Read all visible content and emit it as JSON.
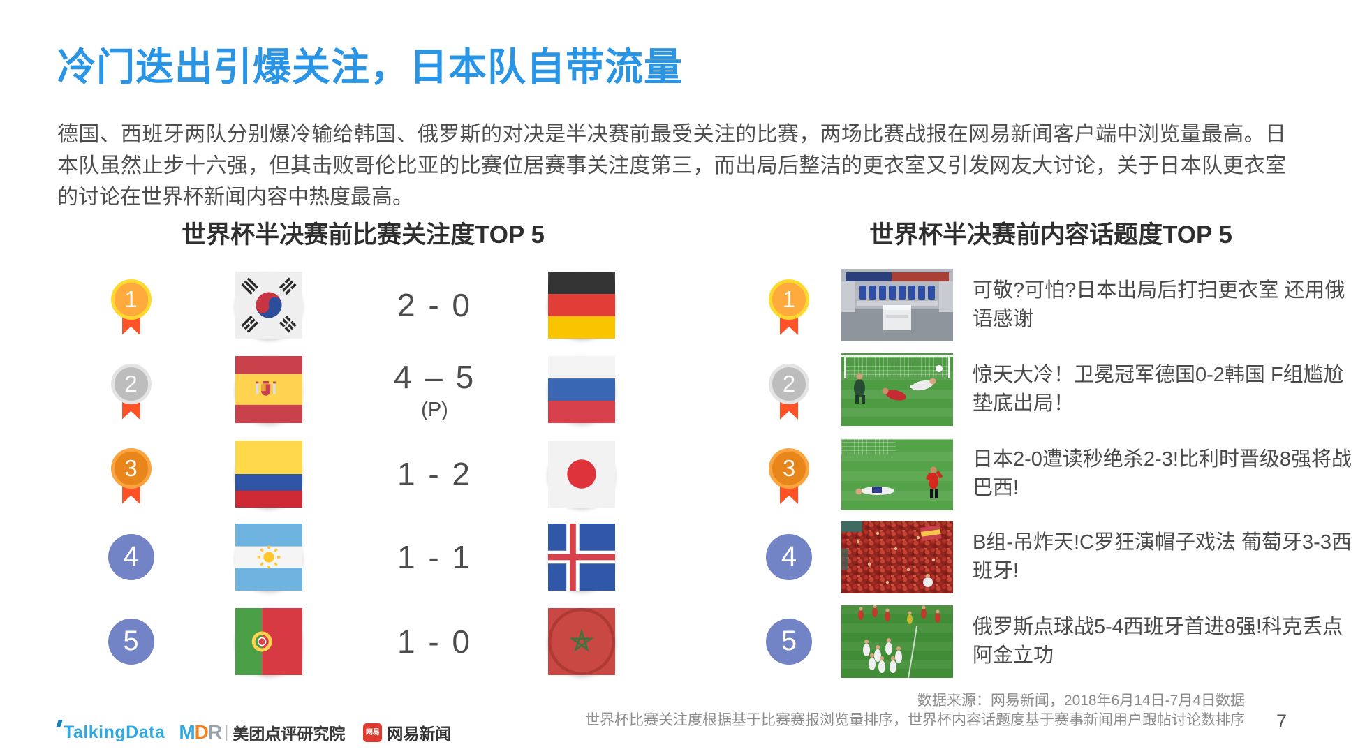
{
  "slide": {
    "title": "冷门迭出引爆关注，日本队自带流量",
    "intro": "德国、西班牙两队分别爆冷输给韩国、俄罗斯的对决是半决赛前最受关注的比赛，两场比赛战报在网易新闻客户端中浏览量最高。日本队虽然止步十六强，但其击败哥伦比亚的比赛位居赛事关注度第三，而出局后整洁的更衣室又引发网友大讨论，关于日本队更衣室的讨论在世界杯新闻内容中热度最高。",
    "page_number": "7"
  },
  "colors": {
    "title_blue": "#2B95E5",
    "rank_circle_blue": "#7283C6",
    "medal_gold": "#FFAA3C",
    "medal_silver": "#BDBDBD",
    "medal_bronze": "#E8861C",
    "ribbon_orange": "#FF5226"
  },
  "left_panel": {
    "header": "世界杯半决赛前比赛关注度TOP 5",
    "matches": [
      {
        "rank": "1",
        "rank_style": "gold-medal",
        "home_team": "south-korea",
        "score": "2 - 0",
        "score_note": "",
        "away_team": "germany"
      },
      {
        "rank": "2",
        "rank_style": "silver-medal",
        "home_team": "spain",
        "score": "4 – 5",
        "score_note": "(P)",
        "away_team": "russia"
      },
      {
        "rank": "3",
        "rank_style": "bronze-medal",
        "home_team": "colombia",
        "score": "1 - 2",
        "score_note": "",
        "away_team": "japan"
      },
      {
        "rank": "4",
        "rank_style": "blue-circle",
        "home_team": "argentina",
        "score": "1 - 1",
        "score_note": "",
        "away_team": "iceland"
      },
      {
        "rank": "5",
        "rank_style": "blue-circle",
        "home_team": "portugal",
        "score": "1 - 0",
        "score_note": "",
        "away_team": "morocco"
      }
    ]
  },
  "right_panel": {
    "header": "世界杯半决赛前内容话题度TOP 5",
    "topics": [
      {
        "rank": "1",
        "rank_style": "gold-medal",
        "thumbnail": "japan-locker-room-photo",
        "headline": "可敬?可怕?日本出局后打扫更衣室 还用俄语感谢"
      },
      {
        "rank": "2",
        "rank_style": "silver-medal",
        "thumbnail": "germany-korea-goal-photo",
        "headline": "惊天大冷！卫冕冠军德国0-2韩国 F组尴尬垫底出局！"
      },
      {
        "rank": "3",
        "rank_style": "bronze-medal",
        "thumbnail": "japan-belgium-match-photo",
        "headline": "日本2-0遭读秒绝杀2-3!比利时晋级8强将战巴西!"
      },
      {
        "rank": "4",
        "rank_style": "blue-circle",
        "thumbnail": "portugal-spain-fans-photo",
        "headline": "B组-吊炸天!C罗狂演帽子戏法 葡萄牙3-3西班牙!"
      },
      {
        "rank": "5",
        "rank_style": "blue-circle",
        "thumbnail": "russia-spain-celebration-photo",
        "headline": "俄罗斯点球战5-4西班牙首进8强!科克丢点阿金立功"
      }
    ]
  },
  "footer": {
    "talkingdata_logo": "TalkingData",
    "mdr_logo": "MDR",
    "meituan_label": "美团点评研究院",
    "netease_icon_label": "网易",
    "netease_label": "网易新闻",
    "source_line1": "数据来源：网易新闻，2018年6月14日-7月4日数据",
    "source_line2": "世界杯比赛关注度根据基于比赛赛报浏览量排序，世界杯内容话题度基于赛事新闻用户跟帖讨论数排序"
  }
}
